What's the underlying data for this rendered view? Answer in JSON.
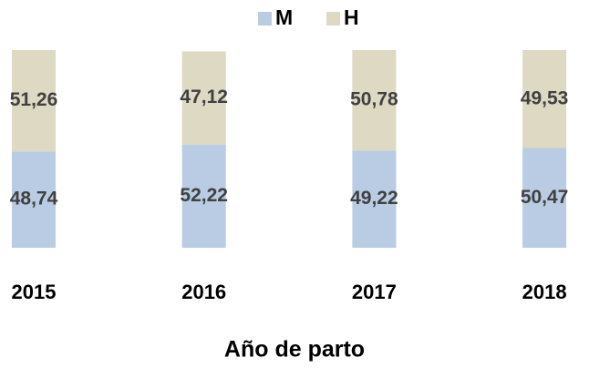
{
  "chart_data": {
    "type": "stacked_bar",
    "x_label": "Año de parto",
    "categories": [
      "2015",
      "2016",
      "2017",
      "2018"
    ],
    "ylim": [
      0,
      100
    ],
    "series": [
      {
        "name": "M",
        "color": "#b9cce4",
        "values": [
          48.74,
          52.22,
          49.22,
          50.47
        ],
        "value_labels": [
          "48,74",
          "52,22",
          "49,22",
          "50,47"
        ]
      },
      {
        "name": "H",
        "color": "#ddd9c3",
        "values": [
          51.26,
          47.12,
          50.78,
          49.53
        ],
        "value_labels": [
          "51,26",
          "47,12",
          "50,78",
          "49,53"
        ]
      }
    ]
  }
}
